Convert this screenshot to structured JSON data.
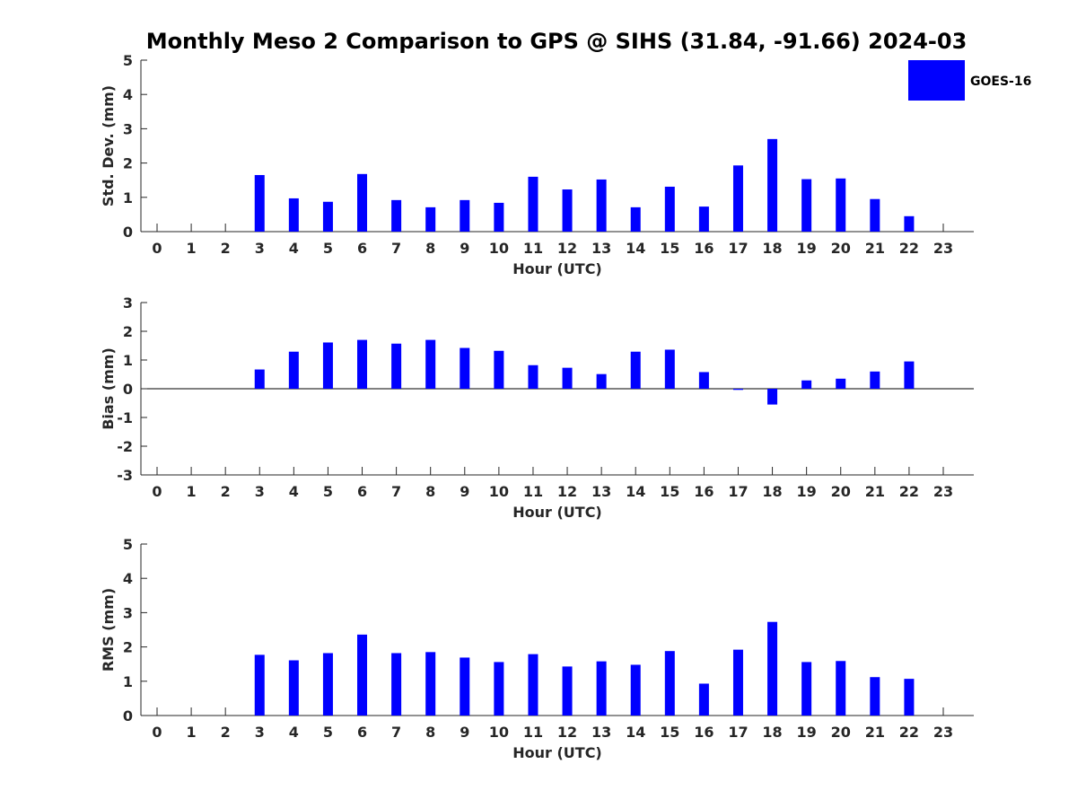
{
  "chart_data": {
    "title": "Monthly Meso 2 Comparison to GPS @ SIHS (31.84, -91.66) 2024-03",
    "type": "bar",
    "legend": {
      "entries": [
        "GOES-16"
      ],
      "placement": "top-right",
      "color": "#0000ff"
    },
    "bar_color": "#0000ff",
    "x": [
      0,
      1,
      2,
      3,
      4,
      5,
      6,
      7,
      8,
      9,
      10,
      11,
      12,
      13,
      14,
      15,
      16,
      17,
      18,
      19,
      20,
      21,
      22,
      23
    ],
    "xlabel": "Hour (UTC)",
    "panels": [
      {
        "ylabel": "Std. Dev. (mm)",
        "ylim": [
          0,
          5
        ],
        "yticks": [
          0,
          1,
          2,
          3,
          4,
          5
        ],
        "series": [
          {
            "name": "GOES-16",
            "values": [
              null,
              null,
              null,
              1.65,
              0.97,
              0.87,
              1.68,
              0.92,
              0.71,
              0.92,
              0.84,
              1.6,
              1.23,
              1.52,
              0.71,
              1.31,
              0.73,
              1.93,
              2.7,
              1.53,
              1.55,
              0.95,
              0.45,
              null
            ]
          }
        ]
      },
      {
        "ylabel": "Bias (mm)",
        "ylim": [
          -3,
          3
        ],
        "yticks": [
          -3,
          -2,
          -1,
          0,
          1,
          2,
          3
        ],
        "zero_line": true,
        "series": [
          {
            "name": "GOES-16",
            "values": [
              null,
              null,
              null,
              0.67,
              1.29,
              1.61,
              1.7,
              1.57,
              1.7,
              1.42,
              1.32,
              0.82,
              0.73,
              0.51,
              1.29,
              1.36,
              0.58,
              -0.04,
              -0.55,
              0.29,
              0.35,
              0.6,
              0.95,
              null
            ]
          }
        ]
      },
      {
        "ylabel": "RMS (mm)",
        "ylim": [
          0,
          5
        ],
        "yticks": [
          0,
          1,
          2,
          3,
          4,
          5
        ],
        "series": [
          {
            "name": "GOES-16",
            "values": [
              null,
              null,
              null,
              1.77,
              1.61,
              1.82,
              2.36,
              1.82,
              1.85,
              1.69,
              1.56,
              1.79,
              1.43,
              1.58,
              1.48,
              1.88,
              0.93,
              1.92,
              2.73,
              1.56,
              1.59,
              1.12,
              1.07,
              null
            ]
          }
        ]
      }
    ]
  }
}
